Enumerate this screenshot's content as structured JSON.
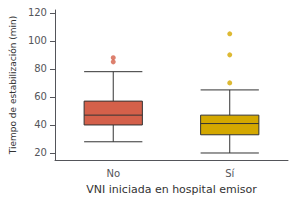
{
  "chart_data": {
    "type": "box",
    "xlabel": "VNI iniciada en hospital emisor",
    "ylabel": "Tiempo de estabilización (min)",
    "categories": [
      "No",
      "Sí"
    ],
    "boxes": [
      {
        "whisker_low": 28,
        "q1": 40,
        "median": 47,
        "q3": 57,
        "whisker_high": 78,
        "outliers": [
          85,
          88
        ]
      },
      {
        "whisker_low": 20,
        "q1": 33,
        "median": 41,
        "q3": 47,
        "whisker_high": 65,
        "outliers": [
          70,
          90,
          105
        ]
      }
    ],
    "colors": [
      "#D4604A",
      "#D4A800"
    ],
    "ylim": [
      15,
      122
    ],
    "yticks": [
      20,
      40,
      60,
      80,
      100,
      120
    ],
    "grid": false
  }
}
